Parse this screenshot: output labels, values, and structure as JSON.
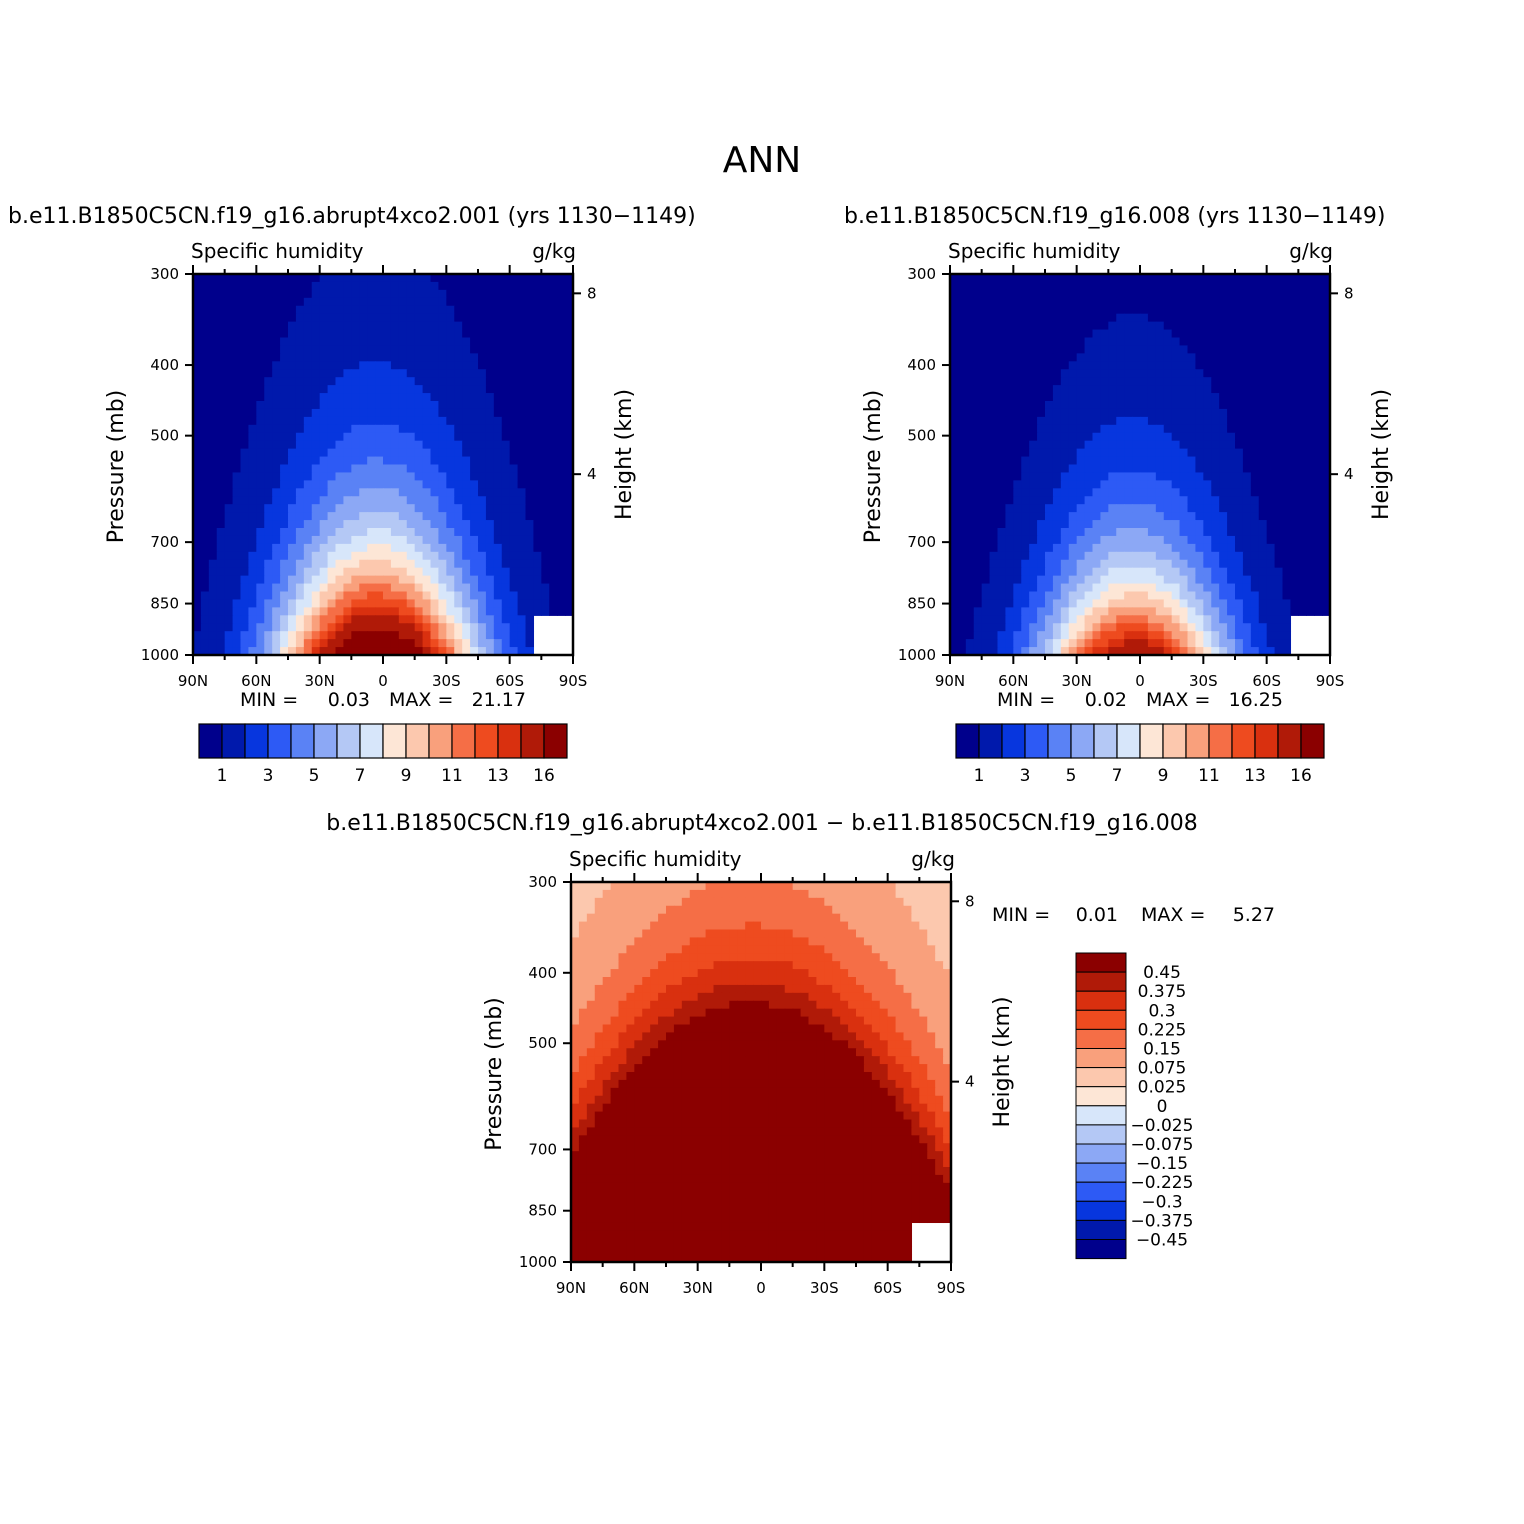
{
  "figure": {
    "title": "ANN"
  },
  "panels": [
    {
      "case_title": "b.e11.B1850C5CN.f19_g16.abrupt4xco2.001 (yrs 1130−1149)",
      "variable": "Specific humidity",
      "units": "g/kg",
      "min_label": "MIN =",
      "min_value": "0.03",
      "max_label": "MAX =",
      "max_value": "21.17"
    },
    {
      "case_title": "b.e11.B1850C5CN.f19_g16.008 (yrs 1130−1149)",
      "variable": "Specific humidity",
      "units": "g/kg",
      "min_label": "MIN =",
      "min_value": "0.02",
      "max_label": "MAX =",
      "max_value": "16.25"
    },
    {
      "case_title": "b.e11.B1850C5CN.f19_g16.abrupt4xco2.001 − b.e11.B1850C5CN.f19_g16.008",
      "variable": "Specific humidity",
      "units": "g/kg",
      "min_label": "MIN =",
      "min_value": "0.01",
      "max_label": "MAX =",
      "max_value": "5.27"
    }
  ],
  "axes": {
    "ylabel_left": "Pressure (mb)",
    "ylabel_right": "Height (km)",
    "pressure_ticks": [
      "300",
      "400",
      "500",
      "700",
      "850",
      "1000"
    ],
    "height_ticks": [
      "8",
      "4"
    ],
    "lat_ticks": [
      "90N",
      "60N",
      "30N",
      "0",
      "30S",
      "60S",
      "90S"
    ]
  },
  "chart_data": [
    {
      "type": "heatmap",
      "title": "b.e11.B1850C5CN.f19_g16.abrupt4xco2.001 (yrs 1130−1149)",
      "x": "latitude 90N to 90S",
      "y": "pressure (mb), 1000 to 300",
      "xlim": [
        90,
        -90
      ],
      "ylim": [
        1000,
        300
      ],
      "min": 0.03,
      "max": 21.17,
      "contour_levels": [
        1,
        2,
        3,
        4,
        5,
        6,
        7,
        8,
        9,
        10,
        11,
        12,
        13,
        14,
        16
      ],
      "colorbar_labels": [
        "1",
        "3",
        "5",
        "7",
        "9",
        "11",
        "13",
        "16"
      ]
    },
    {
      "type": "heatmap",
      "title": "b.e11.B1850C5CN.f19_g16.008 (yrs 1130−1149)",
      "x": "latitude 90N to 90S",
      "y": "pressure (mb), 1000 to 300",
      "xlim": [
        90,
        -90
      ],
      "ylim": [
        1000,
        300
      ],
      "min": 0.02,
      "max": 16.25,
      "contour_levels": [
        1,
        2,
        3,
        4,
        5,
        6,
        7,
        8,
        9,
        10,
        11,
        12,
        13,
        14,
        16
      ],
      "colorbar_labels": [
        "1",
        "3",
        "5",
        "7",
        "9",
        "11",
        "13",
        "16"
      ]
    },
    {
      "type": "heatmap",
      "title": "b.e11.B1850C5CN.f19_g16.abrupt4xco2.001 − b.e11.B1850C5CN.f19_g16.008",
      "x": "latitude 90N to 90S",
      "y": "pressure (mb), 1000 to 300",
      "xlim": [
        90,
        -90
      ],
      "ylim": [
        1000,
        300
      ],
      "min": 0.01,
      "max": 5.27,
      "contour_levels": [
        -0.45,
        -0.375,
        -0.3,
        -0.225,
        -0.15,
        -0.075,
        -0.025,
        0,
        0.025,
        0.075,
        0.15,
        0.225,
        0.3,
        0.375,
        0.45
      ],
      "colorbar_labels": [
        "0.45",
        "0.375",
        "0.3",
        "0.225",
        "0.15",
        "0.075",
        "0.025",
        "0",
        "−0.025",
        "−0.075",
        "−0.15",
        "−0.225",
        "−0.3",
        "−0.375",
        "−0.45"
      ]
    }
  ],
  "colors": {
    "palette": [
      "#00008c",
      "#0019ac",
      "#0736de",
      "#2d5af5",
      "#5a82f5",
      "#8ca8f5",
      "#b4c8f5",
      "#d7e6fa",
      "#fde6d6",
      "#fcc8ae",
      "#f9a07c",
      "#f56e46",
      "#ee4b1f",
      "#d9300f",
      "#b01a08",
      "#8b0000"
    ],
    "background": "#ffffff",
    "frame": "#000000"
  }
}
